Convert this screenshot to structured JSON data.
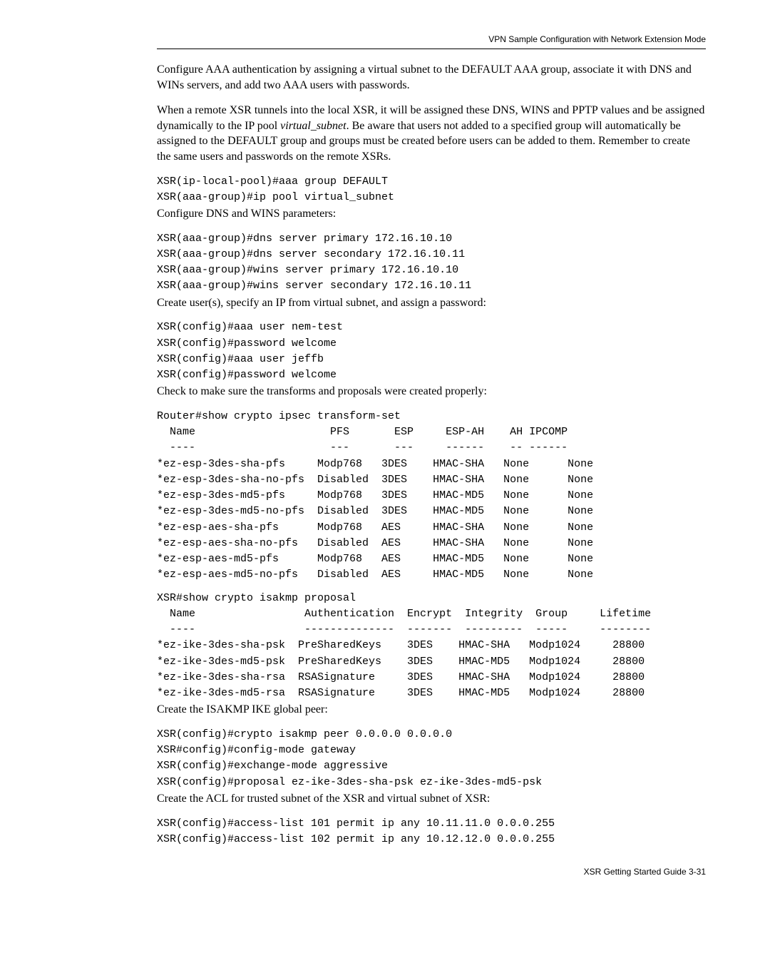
{
  "header": {
    "right_text": "VPN Sample Configuration with Network Extension Mode"
  },
  "paragraphs": {
    "p1": "Configure AAA authentication by assigning a virtual subnet to the DEFAULT AAA group, associate it with DNS and WINs servers, and add two AAA users with passwords.",
    "p2a": "When a remote XSR tunnels into the local XSR, it will be assigned these DNS, WINS and PPTP values and be assigned dynamically to the IP pool ",
    "p2_italic": "virtual_subnet",
    "p2b": ". Be aware that users not added to a specified group will automatically be assigned to the DEFAULT group and groups must be created before users can be added to them. Remember to create the same users and passwords on the remote XSRs.",
    "p3": "Configure DNS and WINS parameters:",
    "p4": "Create user(s), specify an IP from virtual subnet, and assign a password:",
    "p5": "Check to make sure the transforms and proposals were created properly:",
    "p6": "Create the ISAKMP IKE global peer:",
    "p7": "Create the ACL for trusted subnet of the XSR and virtual subnet of XSR:"
  },
  "cli": {
    "block1": [
      "XSR(ip-local-pool)#aaa group DEFAULT",
      "XSR(aaa-group)#ip pool virtual_subnet"
    ],
    "block2": [
      "XSR(aaa-group)#dns server primary 172.16.10.10",
      "XSR(aaa-group)#dns server secondary 172.16.10.11",
      "XSR(aaa-group)#wins server primary 172.16.10.10",
      "XSR(aaa-group)#wins server secondary 172.16.10.11"
    ],
    "block3": [
      "XSR(config)#aaa user nem-test",
      "XSR(config)#password welcome",
      "XSR(config)#aaa user jeffb",
      "XSR(config)#password welcome"
    ],
    "block4_title": "Router#show crypto ipsec transform-set",
    "block4_header": "  Name                     PFS       ESP     ESP-AH    AH IPCOMP",
    "block4_dash": "  ----                     ---       ---     ------    -- ------",
    "block4_rows": [
      "*ez-esp-3des-sha-pfs     Modp768   3DES    HMAC-SHA   None      None",
      "*ez-esp-3des-sha-no-pfs  Disabled  3DES    HMAC-SHA   None      None",
      "*ez-esp-3des-md5-pfs     Modp768   3DES    HMAC-MD5   None      None",
      "*ez-esp-3des-md5-no-pfs  Disabled  3DES    HMAC-MD5   None      None",
      "*ez-esp-aes-sha-pfs      Modp768   AES     HMAC-SHA   None      None",
      "*ez-esp-aes-sha-no-pfs   Disabled  AES     HMAC-SHA   None      None",
      "*ez-esp-aes-md5-pfs      Modp768   AES     HMAC-MD5   None      None",
      "*ez-esp-aes-md5-no-pfs   Disabled  AES     HMAC-MD5   None      None"
    ],
    "block5_title": "XSR#show crypto isakmp proposal",
    "block5_header": "  Name                 Authentication  Encrypt  Integrity  Group     Lifetime",
    "block5_dash": "  ----                 --------------  -------  ---------  -----     --------",
    "block5_rows": [
      "*ez-ike-3des-sha-psk  PreSharedKeys    3DES    HMAC-SHA   Modp1024     28800",
      "*ez-ike-3des-md5-psk  PreSharedKeys    3DES    HMAC-MD5   Modp1024     28800",
      "*ez-ike-3des-sha-rsa  RSASignature     3DES    HMAC-SHA   Modp1024     28800",
      "*ez-ike-3des-md5-rsa  RSASignature     3DES    HMAC-MD5   Modp1024     28800"
    ],
    "block6": [
      "XSR(config)#crypto isakmp peer 0.0.0.0 0.0.0.0",
      "XSR#config)#config-mode gateway",
      "XSR(config)#exchange-mode aggressive",
      "XSR(config)#proposal ez-ike-3des-sha-psk ez-ike-3des-md5-psk"
    ],
    "block7": [
      "XSR(config)#access-list 101 permit ip any 10.11.11.0 0.0.0.255",
      "XSR(config)#access-list 102 permit ip any 10.12.12.0 0.0.0.255"
    ]
  },
  "footer": {
    "text": "XSR Getting Started Guide   3-31"
  }
}
